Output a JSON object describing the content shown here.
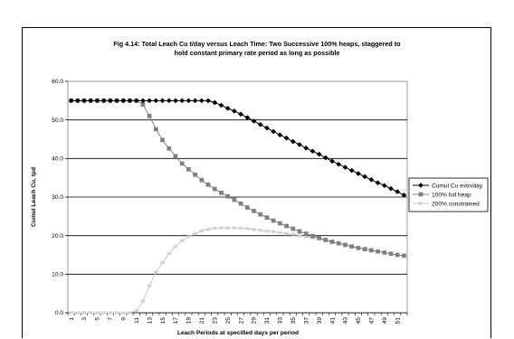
{
  "chart_data": {
    "type": "line",
    "title_line1": "Fig 4.14: Total Leach Cu t/day versus Leach Time: Two Successive 100% heaps, staggered to",
    "title_line2": "hold constant primary rate period as long as possible",
    "xlabel": "Leach Periods at specified days per period",
    "ylabel": "Cumul Leach Cu, tpd",
    "ylim": [
      0,
      60
    ],
    "yticks": [
      "0.0",
      "10.0",
      "20.0",
      "30.0",
      "40.0",
      "50.0",
      "60.0"
    ],
    "x": [
      1,
      2,
      3,
      4,
      5,
      6,
      7,
      8,
      9,
      10,
      11,
      12,
      13,
      14,
      15,
      16,
      17,
      18,
      19,
      20,
      21,
      22,
      23,
      24,
      25,
      26,
      27,
      28,
      29,
      30,
      31,
      32,
      33,
      34,
      35,
      36,
      37,
      38,
      39,
      40,
      41,
      42,
      43,
      44,
      45,
      46,
      47,
      48,
      49,
      50,
      51,
      52
    ],
    "xtick_labels": [
      "1",
      "3",
      "5",
      "7",
      "9",
      "11",
      "13",
      "15",
      "17",
      "19",
      "21",
      "23",
      "25",
      "27",
      "29",
      "31",
      "33",
      "35",
      "37",
      "39",
      "41",
      "43",
      "45",
      "47",
      "49",
      "51"
    ],
    "grid": true,
    "legend_position": "right",
    "series": [
      {
        "name": "Cumul Cu extn/day",
        "color": "#000000",
        "marker": "diamond",
        "values": [
          55,
          55,
          55,
          55,
          55,
          55,
          55,
          55,
          55,
          55,
          55,
          55,
          55,
          55,
          55,
          55,
          55,
          55,
          55,
          55,
          55,
          55,
          54.5,
          53.8,
          53,
          52.3,
          51.5,
          50.6,
          49.7,
          48.8,
          47.9,
          47,
          46.1,
          45.3,
          44.4,
          43.6,
          42.7,
          41.9,
          41.1,
          40.2,
          39.3,
          38.5,
          37.7,
          36.9,
          36.1,
          35.3,
          34.5,
          33.7,
          33,
          32.2,
          31.4,
          30.5
        ]
      },
      {
        "name": "100% full heap",
        "color": "#808080",
        "marker": "square",
        "values": [
          55,
          55,
          55,
          55,
          55,
          55,
          55,
          55,
          55,
          55,
          55,
          54,
          51,
          47.6,
          44.8,
          42.6,
          40.6,
          38.7,
          37.2,
          35.8,
          34.4,
          33.2,
          32.1,
          31.1,
          30.2,
          29.3,
          28.3,
          27.3,
          26.4,
          25.5,
          24.7,
          23.9,
          23.2,
          22.5,
          21.8,
          21.1,
          20.5,
          19.9,
          19.4,
          18.9,
          18.4,
          18,
          17.6,
          17.2,
          16.8,
          16.5,
          16.2,
          15.9,
          15.6,
          15.3,
          15,
          14.8
        ]
      },
      {
        "name": "200% constrained",
        "color": "#c8c8c8",
        "marker": "star",
        "values": [
          0,
          0,
          0,
          0,
          0,
          0,
          0,
          0,
          0,
          0,
          0.5,
          3,
          7,
          10.5,
          13,
          15.3,
          17.2,
          18.7,
          19.8,
          20.5,
          21.2,
          21.6,
          21.9,
          22,
          22,
          22,
          21.9,
          21.8,
          21.6,
          21.4,
          21.2,
          21,
          20.8,
          20.5,
          20.3,
          20,
          19.7,
          19.4,
          19.1,
          18.7,
          18.3,
          18,
          17.6,
          17.2,
          16.8,
          16.5,
          16.2,
          15.9,
          15.6,
          15.3,
          15,
          14.8
        ]
      }
    ]
  }
}
